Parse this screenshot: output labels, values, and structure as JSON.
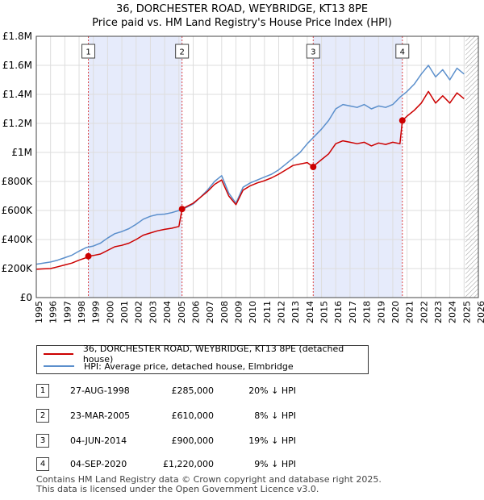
{
  "colors": {
    "price_paid": "#cc0000",
    "hpi": "#5b8fcc",
    "shade": "#e6ebfb",
    "grid": "#dddddd",
    "marker_line": "#dd4444",
    "hatch": "#999999"
  },
  "chart_data": {
    "type": "line",
    "title": "36, DORCHESTER ROAD, WEYBRIDGE, KT13 8PE",
    "subtitle": "Price paid vs. HM Land Registry's House Price Index (HPI)",
    "xlim": [
      1995,
      2026
    ],
    "ylim": [
      0,
      1800000
    ],
    "x_ticks": [
      "1995",
      "1996",
      "1997",
      "1998",
      "1999",
      "2000",
      "2001",
      "2002",
      "2003",
      "2004",
      "2005",
      "2006",
      "2007",
      "2008",
      "2009",
      "2010",
      "2011",
      "2012",
      "2013",
      "2014",
      "2015",
      "2016",
      "2017",
      "2018",
      "2019",
      "2020",
      "2021",
      "2022",
      "2023",
      "2024",
      "2025",
      "2026"
    ],
    "y_ticks": [
      {
        "value": 0,
        "label": "£0"
      },
      {
        "value": 200000,
        "label": "£200K"
      },
      {
        "value": 400000,
        "label": "£400K"
      },
      {
        "value": 600000,
        "label": "£600K"
      },
      {
        "value": 800000,
        "label": "£800K"
      },
      {
        "value": 1000000,
        "label": "£1M"
      },
      {
        "value": 1200000,
        "label": "£1.2M"
      },
      {
        "value": 1400000,
        "label": "£1.4M"
      },
      {
        "value": 1600000,
        "label": "£1.6M"
      },
      {
        "value": 1800000,
        "label": "£1.8M"
      }
    ],
    "shaded_periods": [
      [
        1998.65,
        2005.22
      ],
      [
        2014.42,
        2020.67
      ]
    ],
    "data_end_year": 2025.1,
    "series": [
      {
        "name": "HPI: Average price, detached house, Elmbridge",
        "x": [
          1995,
          1995.5,
          1996,
          1996.5,
          1997,
          1997.5,
          1998,
          1998.5,
          1999,
          1999.5,
          2000,
          2000.5,
          2001,
          2001.5,
          2002,
          2002.5,
          2003,
          2003.5,
          2004,
          2004.5,
          2005,
          2005.5,
          2006,
          2006.5,
          2007,
          2007.5,
          2008,
          2008.5,
          2009,
          2009.5,
          2010,
          2010.5,
          2011,
          2011.5,
          2012,
          2012.5,
          2013,
          2013.5,
          2014,
          2014.5,
          2015,
          2015.5,
          2016,
          2016.5,
          2017,
          2017.5,
          2018,
          2018.5,
          2019,
          2019.5,
          2020,
          2020.5,
          2021,
          2021.5,
          2022,
          2022.5,
          2023,
          2023.5,
          2024,
          2024.5,
          2025
        ],
        "values": [
          230000,
          238000,
          245000,
          258000,
          275000,
          292000,
          320000,
          345000,
          355000,
          375000,
          410000,
          440000,
          455000,
          475000,
          505000,
          540000,
          560000,
          572000,
          575000,
          585000,
          600000,
          620000,
          645000,
          690000,
          740000,
          800000,
          840000,
          720000,
          650000,
          760000,
          790000,
          810000,
          830000,
          850000,
          880000,
          920000,
          960000,
          1000000,
          1060000,
          1110000,
          1160000,
          1220000,
          1300000,
          1330000,
          1320000,
          1310000,
          1330000,
          1300000,
          1320000,
          1310000,
          1330000,
          1380000,
          1420000,
          1470000,
          1540000,
          1600000,
          1520000,
          1570000,
          1500000,
          1580000,
          1540000
        ]
      },
      {
        "name": "36, DORCHESTER ROAD, WEYBRIDGE, KT13 8PE (detached house)",
        "x": [
          1995,
          1995.5,
          1996,
          1996.5,
          1997,
          1997.5,
          1998,
          1998.5,
          1998.65,
          1999,
          1999.5,
          2000,
          2000.5,
          2001,
          2001.5,
          2002,
          2002.5,
          2003,
          2003.5,
          2004,
          2004.5,
          2005,
          2005.22,
          2005.5,
          2006,
          2006.5,
          2007,
          2007.5,
          2008,
          2008.5,
          2009,
          2009.5,
          2010,
          2010.5,
          2011,
          2011.5,
          2012,
          2012.5,
          2013,
          2013.5,
          2014,
          2014.42,
          2014.5,
          2015,
          2015.5,
          2016,
          2016.5,
          2017,
          2017.5,
          2018,
          2018.5,
          2019,
          2019.5,
          2020,
          2020.5,
          2020.67,
          2021,
          2021.5,
          2022,
          2022.5,
          2023,
          2023.5,
          2024,
          2024.5,
          2025
        ],
        "values": [
          195000,
          198000,
          200000,
          212000,
          225000,
          238000,
          258000,
          275000,
          285000,
          290000,
          300000,
          325000,
          350000,
          360000,
          375000,
          400000,
          430000,
          445000,
          460000,
          470000,
          478000,
          490000,
          610000,
          625000,
          650000,
          690000,
          730000,
          780000,
          810000,
          700000,
          640000,
          740000,
          770000,
          790000,
          805000,
          825000,
          850000,
          880000,
          910000,
          920000,
          930000,
          900000,
          910000,
          950000,
          990000,
          1060000,
          1080000,
          1070000,
          1060000,
          1070000,
          1045000,
          1065000,
          1055000,
          1070000,
          1060000,
          1220000,
          1250000,
          1290000,
          1340000,
          1420000,
          1340000,
          1390000,
          1340000,
          1410000,
          1370000
        ]
      }
    ],
    "sales": [
      {
        "label": "1",
        "x": 1998.65,
        "y": 285000
      },
      {
        "label": "2",
        "x": 2005.22,
        "y": 610000
      },
      {
        "label": "3",
        "x": 2014.42,
        "y": 900000
      },
      {
        "label": "4",
        "x": 2020.67,
        "y": 1220000
      }
    ]
  },
  "legend": {
    "price_paid": "36, DORCHESTER ROAD, WEYBRIDGE, KT13 8PE (detached house)",
    "hpi": "HPI: Average price, detached house, Elmbridge"
  },
  "table": [
    {
      "num": "1",
      "date": "27-AUG-1998",
      "price": "£285,000",
      "diff": "20% ↓ HPI"
    },
    {
      "num": "2",
      "date": "23-MAR-2005",
      "price": "£610,000",
      "diff": "8% ↓ HPI"
    },
    {
      "num": "3",
      "date": "04-JUN-2014",
      "price": "£900,000",
      "diff": "19% ↓ HPI"
    },
    {
      "num": "4",
      "date": "04-SEP-2020",
      "price": "£1,220,000",
      "diff": "9% ↓ HPI"
    }
  ],
  "footer": {
    "line1": "Contains HM Land Registry data © Crown copyright and database right 2025.",
    "line2": "This data is licensed under the Open Government Licence v3.0."
  }
}
